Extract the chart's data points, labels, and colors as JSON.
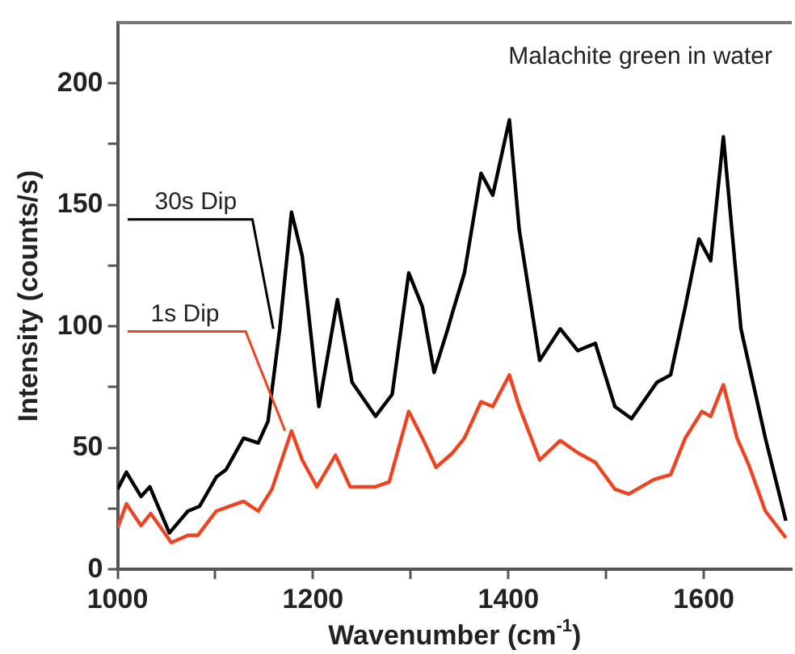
{
  "chart_data": {
    "type": "line",
    "xlabel": "Wavenumber (cm$^{-1}$)",
    "ylabel": "Intensity (counts/s)",
    "annotations": [
      "Malachite green in water"
    ],
    "xlim": [
      1000,
      1690
    ],
    "xticks": [
      1000,
      {
        "value": 1100,
        "label": null
      },
      1200,
      {
        "value": 1300,
        "label": null
      },
      1400,
      {
        "value": 1500,
        "label": null
      },
      1600
    ],
    "ylim": [
      0,
      225
    ],
    "yticks": [
      0,
      {
        "value": 25,
        "label": null
      },
      50,
      {
        "value": 75,
        "label": null
      },
      100,
      {
        "value": 125,
        "label": null
      },
      150,
      {
        "value": 175,
        "label": null
      },
      200
    ],
    "grid": false,
    "legend": false,
    "marker": "none",
    "line_style": "solid",
    "series": [
      {
        "name": "30s Dip",
        "color": "#000000",
        "x": [
          1000,
          1009,
          1024,
          1033,
          1053,
          1072,
          1084,
          1101,
          1111,
          1129,
          1144,
          1154,
          1166,
          1178,
          1189,
          1206,
          1225,
          1240,
          1264,
          1281,
          1298,
          1312,
          1324,
          1338,
          1343,
          1355,
          1372,
          1384,
          1401,
          1411,
          1432,
          1453,
          1471,
          1489,
          1509,
          1526,
          1552,
          1566,
          1581,
          1595,
          1607,
          1620,
          1638,
          1663,
          1684
        ],
        "values": [
          33,
          40,
          30,
          34,
          15,
          24,
          26,
          38,
          41,
          54,
          52,
          61,
          99,
          147,
          129,
          67,
          111,
          77,
          63,
          72,
          122,
          108,
          81,
          99,
          106,
          122,
          163,
          154,
          185,
          140,
          86,
          99,
          90,
          93,
          67,
          62,
          77,
          80,
          108,
          136,
          127,
          178,
          99,
          54,
          20
        ]
      },
      {
        "name": "1s Dip",
        "color": "#ee4422",
        "x": [
          1000,
          1009,
          1024,
          1034,
          1055,
          1072,
          1082,
          1101,
          1115,
          1129,
          1144,
          1158,
          1178,
          1189,
          1204,
          1223,
          1238,
          1264,
          1278,
          1298,
          1312,
          1326,
          1343,
          1355,
          1372,
          1384,
          1401,
          1411,
          1432,
          1453,
          1471,
          1489,
          1509,
          1523,
          1549,
          1566,
          1581,
          1598,
          1607,
          1620,
          1634,
          1646,
          1663,
          1684
        ],
        "values": [
          17,
          27,
          18,
          23,
          11,
          14,
          14,
          24,
          26,
          28,
          24,
          33,
          57,
          45,
          34,
          47,
          34,
          34,
          36,
          65,
          54,
          42,
          48,
          54,
          69,
          67,
          80,
          67,
          45,
          53,
          48,
          44,
          33,
          31,
          37,
          39,
          54,
          65,
          63,
          76,
          54,
          43,
          24,
          13
        ]
      }
    ]
  }
}
